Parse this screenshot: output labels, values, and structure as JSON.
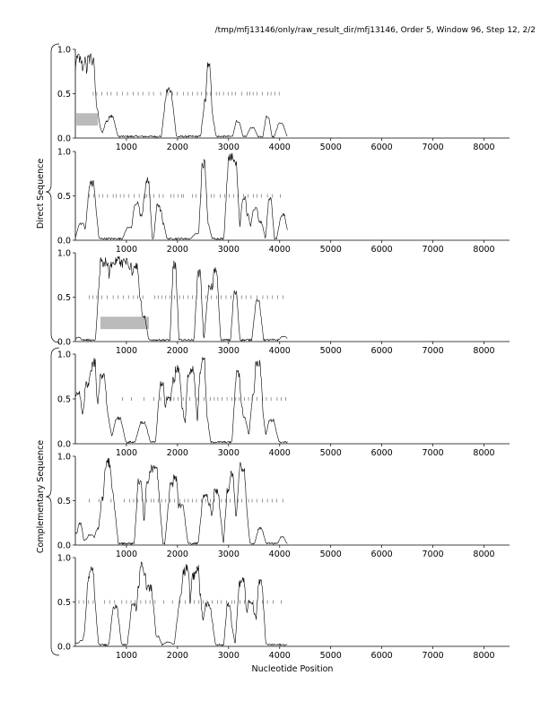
{
  "header": "/tmp/mfj13146/only/raw_result_dir/mfj13146, Order 5, Window 96, Step 12, 2/2",
  "xlabel": "Nucleotide Position",
  "group_labels": {
    "direct": "Direct Sequence",
    "complementary": "Complementary Sequence"
  },
  "colors": {
    "line": "#000000",
    "box": "#bbbbbb",
    "dash": "#555555",
    "axis": "#000000"
  },
  "chart_data": {
    "type": "line",
    "xlim": [
      0,
      8500
    ],
    "ylim": [
      0,
      1
    ],
    "xticks": [
      1000,
      2000,
      3000,
      4000,
      5000,
      6000,
      7000,
      8000
    ],
    "yticks": [
      0.0,
      0.5,
      1.0
    ],
    "ytick_labels": [
      "0.0",
      "0.5",
      "1.0"
    ],
    "seq_end": 4150,
    "panels": [
      {
        "group": "direct",
        "frame": 1,
        "boxes": [
          {
            "x0": 20,
            "x1": 440,
            "y0": 0.14,
            "y1": 0.28
          }
        ],
        "dash_y": 0.5,
        "dash_x": [
          350,
          420,
          520,
          620,
          700,
          820,
          920,
          1020,
          1130,
          1230,
          1320,
          1440,
          1530,
          1670,
          1810,
          1900,
          1990,
          2120,
          2200,
          2290,
          2390,
          2470,
          2580,
          2650,
          2760,
          2820,
          2900,
          2990,
          3070,
          3130,
          3260,
          3360,
          3420,
          3480,
          3560,
          3660,
          3770,
          3830,
          3910,
          3990
        ],
        "peaks": [
          [
            20,
            0.6
          ],
          [
            60,
            0.95
          ],
          [
            100,
            0.88
          ],
          [
            140,
            0.6
          ],
          [
            180,
            0.92
          ],
          [
            230,
            0.7
          ],
          [
            280,
            0.95
          ],
          [
            320,
            0.93
          ],
          [
            360,
            0.55
          ],
          [
            400,
            0.35
          ],
          [
            440,
            0.15
          ],
          [
            640,
            0.2
          ],
          [
            700,
            0.26
          ],
          [
            1790,
            0.35
          ],
          [
            1830,
            0.58
          ],
          [
            1870,
            0.2
          ],
          [
            2560,
            0.45
          ],
          [
            2610,
            0.88
          ],
          [
            2650,
            0.3
          ],
          [
            3180,
            0.2
          ],
          [
            3460,
            0.12
          ],
          [
            3760,
            0.25
          ],
          [
            4020,
            0.18
          ]
        ]
      },
      {
        "group": "direct",
        "frame": 2,
        "boxes": [],
        "dash_y": 0.5,
        "dash_x": [
          270,
          360,
          470,
          540,
          630,
          740,
          800,
          880,
          950,
          1050,
          1150,
          1250,
          1340,
          1400,
          1460,
          1540,
          1640,
          1720,
          1870,
          1930,
          2010,
          2080,
          2120,
          2290,
          2360,
          2460,
          2570,
          2660,
          2720,
          2840,
          2920,
          3010,
          3100,
          3190,
          3290,
          3380,
          3490,
          3560,
          3640,
          3760,
          3860,
          4010
        ],
        "peaks": [
          [
            120,
            0.2
          ],
          [
            320,
            0.68
          ],
          [
            1050,
            0.15
          ],
          [
            1200,
            0.45
          ],
          [
            1260,
            0.3
          ],
          [
            1380,
            0.52
          ],
          [
            1410,
            0.72
          ],
          [
            1620,
            0.42
          ],
          [
            1650,
            0.35
          ],
          [
            1700,
            0.2
          ],
          [
            2390,
            0.08
          ],
          [
            2510,
            0.92
          ],
          [
            2570,
            0.2
          ],
          [
            3030,
            0.98
          ],
          [
            3080,
            0.99
          ],
          [
            3120,
            0.92
          ],
          [
            3300,
            0.5
          ],
          [
            3350,
            0.3
          ],
          [
            3520,
            0.38
          ],
          [
            3610,
            0.22
          ],
          [
            3810,
            0.5
          ],
          [
            4060,
            0.3
          ]
        ]
      },
      {
        "group": "direct",
        "frame": 3,
        "boxes": [
          {
            "x0": 490,
            "x1": 1440,
            "y0": 0.14,
            "y1": 0.28
          }
        ],
        "dash_y": 0.5,
        "dash_x": [
          270,
          340,
          420,
          520,
          620,
          740,
          840,
          940,
          1040,
          1140,
          1220,
          1320,
          1550,
          1620,
          1690,
          1770,
          1850,
          1940,
          2040,
          2120,
          2210,
          2290,
          2370,
          2470,
          2560,
          2660,
          2770,
          2850,
          2950,
          3050,
          3160,
          3260,
          3340,
          3440,
          3560,
          3670,
          3760,
          3860,
          3960,
          4070
        ],
        "peaks": [
          [
            60,
            0.05
          ],
          [
            530,
            0.95
          ],
          [
            610,
            0.95
          ],
          [
            660,
            0.7
          ],
          [
            720,
            0.9
          ],
          [
            800,
            0.95
          ],
          [
            850,
            0.98
          ],
          [
            920,
            0.93
          ],
          [
            980,
            0.95
          ],
          [
            1050,
            0.9
          ],
          [
            1110,
            0.8
          ],
          [
            1180,
            0.9
          ],
          [
            1260,
            0.5
          ],
          [
            1330,
            0.3
          ],
          [
            1940,
            0.92
          ],
          [
            2420,
            0.82
          ],
          [
            2650,
            0.66
          ],
          [
            2740,
            0.84
          ],
          [
            3130,
            0.58
          ],
          [
            3570,
            0.48
          ],
          [
            4080,
            0.06
          ]
        ]
      },
      {
        "group": "complementary",
        "frame": 1,
        "boxes": [],
        "dash_y": 0.5,
        "dash_x": [
          920,
          1100,
          1340,
          1540,
          1670,
          1790,
          1860,
          1930,
          2010,
          2110,
          2240,
          2390,
          2520,
          2640,
          2720,
          2790,
          2870,
          2970,
          3060,
          3140,
          3210,
          3310,
          3390,
          3460,
          3560,
          3660,
          3740,
          3830,
          3950,
          4030,
          4120
        ],
        "peaks": [
          [
            40,
            0.6
          ],
          [
            80,
            0.1
          ],
          [
            200,
            0.4
          ],
          [
            230,
            0.7
          ],
          [
            270,
            0.35
          ],
          [
            320,
            0.82
          ],
          [
            360,
            0.96
          ],
          [
            400,
            0.5
          ],
          [
            530,
            0.82
          ],
          [
            580,
            0.4
          ],
          [
            840,
            0.3
          ],
          [
            880,
            0.18
          ],
          [
            1320,
            0.25
          ],
          [
            1690,
            0.7
          ],
          [
            1820,
            0.55
          ],
          [
            1940,
            0.75
          ],
          [
            2000,
            0.9
          ],
          [
            2060,
            0.4
          ],
          [
            2230,
            0.84
          ],
          [
            2280,
            0.88
          ],
          [
            2390,
            0.2
          ],
          [
            2470,
            0.88
          ],
          [
            2500,
            0.99
          ],
          [
            2530,
            0.4
          ],
          [
            3180,
            0.82
          ],
          [
            3210,
            0.5
          ],
          [
            3290,
            0.3
          ],
          [
            3510,
            0.6
          ],
          [
            3560,
            0.92
          ],
          [
            3590,
            0.96
          ],
          [
            3630,
            0.4
          ],
          [
            3840,
            0.28
          ],
          [
            3880,
            0.15
          ]
        ]
      },
      {
        "group": "complementary",
        "frame": 2,
        "boxes": [],
        "dash_y": 0.5,
        "dash_x": [
          270,
          460,
          700,
          960,
          1060,
          1140,
          1220,
          1320,
          1400,
          1480,
          1540,
          1620,
          1690,
          1770,
          1860,
          1940,
          2040,
          2140,
          2210,
          2290,
          2370,
          2470,
          2550,
          2640,
          2720,
          2860,
          2940,
          3030,
          3120,
          3190,
          3260,
          3390,
          3460,
          3550,
          3660,
          3760,
          3850,
          3940,
          4060
        ],
        "peaks": [
          [
            60,
            0.15
          ],
          [
            90,
            0.25
          ],
          [
            240,
            0.07
          ],
          [
            300,
            0.12
          ],
          [
            470,
            0.2
          ],
          [
            560,
            0.56
          ],
          [
            610,
            0.9
          ],
          [
            640,
            0.98
          ],
          [
            700,
            0.6
          ],
          [
            1260,
            0.77
          ],
          [
            1420,
            0.78
          ],
          [
            1480,
            0.88
          ],
          [
            1520,
            0.92
          ],
          [
            1560,
            0.89
          ],
          [
            1900,
            0.72
          ],
          [
            1950,
            0.8
          ],
          [
            2070,
            0.48
          ],
          [
            2540,
            0.6
          ],
          [
            2600,
            0.5
          ],
          [
            2760,
            0.64
          ],
          [
            3000,
            0.66
          ],
          [
            3060,
            0.84
          ],
          [
            3260,
            0.94
          ],
          [
            3310,
            0.48
          ],
          [
            3620,
            0.2
          ],
          [
            3660,
            0.05
          ],
          [
            4050,
            0.1
          ]
        ]
      },
      {
        "group": "complementary",
        "frame": 3,
        "boxes": [],
        "dash_y": 0.5,
        "dash_x": [
          70,
          160,
          260,
          350,
          570,
          670,
          770,
          910,
          1000,
          1090,
          1170,
          1280,
          1380,
          1460,
          1560,
          1730,
          1900,
          2050,
          2150,
          2240,
          2330,
          2420,
          2500,
          2580,
          2680,
          2780,
          2860,
          2960,
          3060,
          3120,
          3220,
          3310,
          3390,
          3480,
          3560,
          3660,
          3760,
          3870,
          4030
        ],
        "peaks": [
          [
            50,
            0.04
          ],
          [
            120,
            0.07
          ],
          [
            200,
            0.15
          ],
          [
            290,
            0.85
          ],
          [
            320,
            0.92
          ],
          [
            360,
            0.55
          ],
          [
            780,
            0.48
          ],
          [
            1140,
            0.5
          ],
          [
            1210,
            0.3
          ],
          [
            1250,
            0.7
          ],
          [
            1300,
            0.98
          ],
          [
            1340,
            0.85
          ],
          [
            1380,
            0.4
          ],
          [
            1450,
            0.7
          ],
          [
            1480,
            0.3
          ],
          [
            1600,
            0.12
          ],
          [
            1820,
            0.05
          ],
          [
            2090,
            0.6
          ],
          [
            2150,
            0.9
          ],
          [
            2190,
            0.93
          ],
          [
            2230,
            0.4
          ],
          [
            2330,
            0.85
          ],
          [
            2380,
            0.92
          ],
          [
            2420,
            0.6
          ],
          [
            2590,
            0.5
          ],
          [
            3000,
            0.5
          ],
          [
            3040,
            0.25
          ],
          [
            3240,
            0.75
          ],
          [
            3270,
            0.78
          ],
          [
            3300,
            0.35
          ],
          [
            3430,
            0.52
          ],
          [
            3480,
            0.4
          ],
          [
            3620,
            0.78
          ],
          [
            3660,
            0.05
          ]
        ]
      }
    ]
  }
}
